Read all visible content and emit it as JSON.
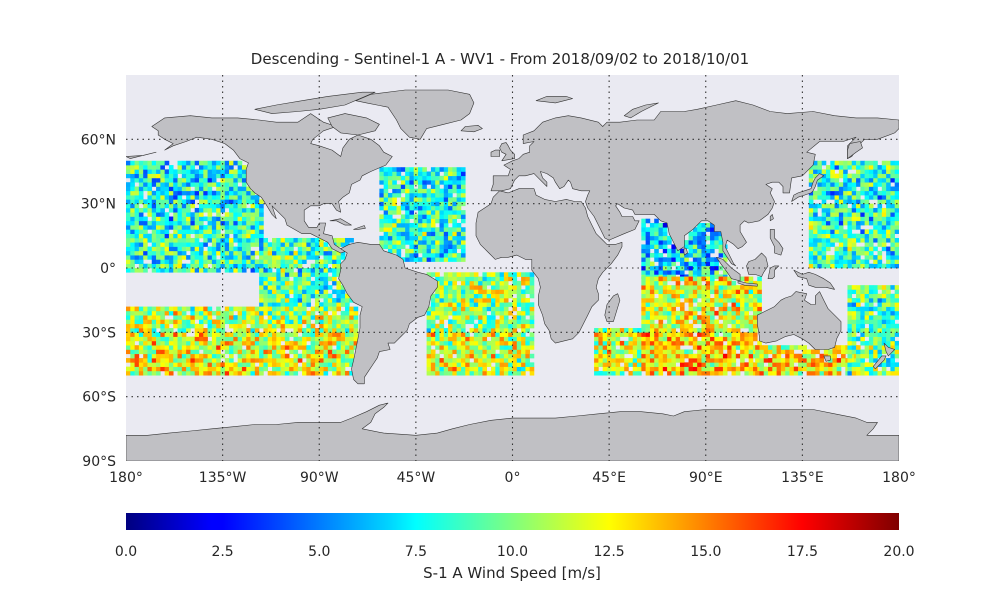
{
  "title": "Descending - Sentinel-1 A - WV1 - From 2018/09/02 to 2018/10/01",
  "colors": {
    "ocean_background": "#eaeaf2",
    "land": "#c0c0c4",
    "coastline": "#333333",
    "grid": "#333333",
    "text": "#262626"
  },
  "chart_data": {
    "type": "heatmap",
    "projection": "equirectangular",
    "xlim": [
      -180,
      180
    ],
    "ylim": [
      -90,
      90
    ],
    "x_ticks": [
      {
        "value": -180,
        "label": "180°"
      },
      {
        "value": -135,
        "label": "135°W"
      },
      {
        "value": -90,
        "label": "90°W"
      },
      {
        "value": -45,
        "label": "45°W"
      },
      {
        "value": 0,
        "label": "0°"
      },
      {
        "value": 45,
        "label": "45°E"
      },
      {
        "value": 90,
        "label": "90°E"
      },
      {
        "value": 135,
        "label": "135°E"
      },
      {
        "value": 180,
        "label": "180°"
      }
    ],
    "y_ticks": [
      {
        "value": 60,
        "label": "60°N"
      },
      {
        "value": 30,
        "label": "30°N"
      },
      {
        "value": 0,
        "label": "0°"
      },
      {
        "value": -30,
        "label": "30°S"
      },
      {
        "value": -60,
        "label": "60°S"
      },
      {
        "value": -90,
        "label": "90°S"
      }
    ],
    "grid": "dotted",
    "data_extent_lat": [
      -50,
      50
    ],
    "colorbar": {
      "label": "S-1 A Wind Speed [m/s]",
      "range": [
        0,
        20
      ],
      "colormap": "jet",
      "ticks": [
        {
          "value": 0,
          "label": "0.0"
        },
        {
          "value": 2.5,
          "label": "2.5"
        },
        {
          "value": 5,
          "label": "5.0"
        },
        {
          "value": 7.5,
          "label": "7.5"
        },
        {
          "value": 10,
          "label": "10.0"
        },
        {
          "value": 12.5,
          "label": "12.5"
        },
        {
          "value": 15,
          "label": "15.0"
        },
        {
          "value": 17.5,
          "label": "17.5"
        },
        {
          "value": 20,
          "label": "20.0"
        }
      ]
    },
    "swath_regions": [
      {
        "name": "north-pacific",
        "lon": [
          -180,
          -116
        ],
        "lat": [
          -2,
          50
        ],
        "mean": 8.5
      },
      {
        "name": "east-tropical-pacific",
        "lon": [
          -118,
          -75
        ],
        "lat": [
          -18,
          13
        ],
        "mean": 8.8
      },
      {
        "name": "south-pacific",
        "lon": [
          -180,
          -72
        ],
        "lat": [
          -50,
          -18
        ],
        "mean": 11.0
      },
      {
        "name": "north-atlantic",
        "lon": [
          -62,
          -22
        ],
        "lat": [
          3,
          47
        ],
        "mean": 8.6
      },
      {
        "name": "south-atlantic",
        "lon": [
          -40,
          10
        ],
        "lat": [
          -50,
          -3
        ],
        "mean": 10.5
      },
      {
        "name": "south-indian-west",
        "lon": [
          38,
          60
        ],
        "lat": [
          -50,
          -28
        ],
        "mean": 10.5
      },
      {
        "name": "arabian-sea-bay-of-bengal",
        "lon": [
          60,
          100
        ],
        "lat": [
          -5,
          23
        ],
        "mean": 6.8
      },
      {
        "name": "south-indian",
        "lon": [
          60,
          115
        ],
        "lat": [
          -50,
          -5
        ],
        "mean": 12.2
      },
      {
        "name": "southern-ocean-south-of-australia",
        "lon": [
          113,
          160
        ],
        "lat": [
          -50,
          -36
        ],
        "mean": 12.0
      },
      {
        "name": "northwest-pacific",
        "lon": [
          138,
          180
        ],
        "lat": [
          0,
          50
        ],
        "mean": 8.6
      },
      {
        "name": "southwest-pacific",
        "lon": [
          156,
          180
        ],
        "lat": [
          -50,
          -8
        ],
        "mean": 8.8
      }
    ]
  }
}
